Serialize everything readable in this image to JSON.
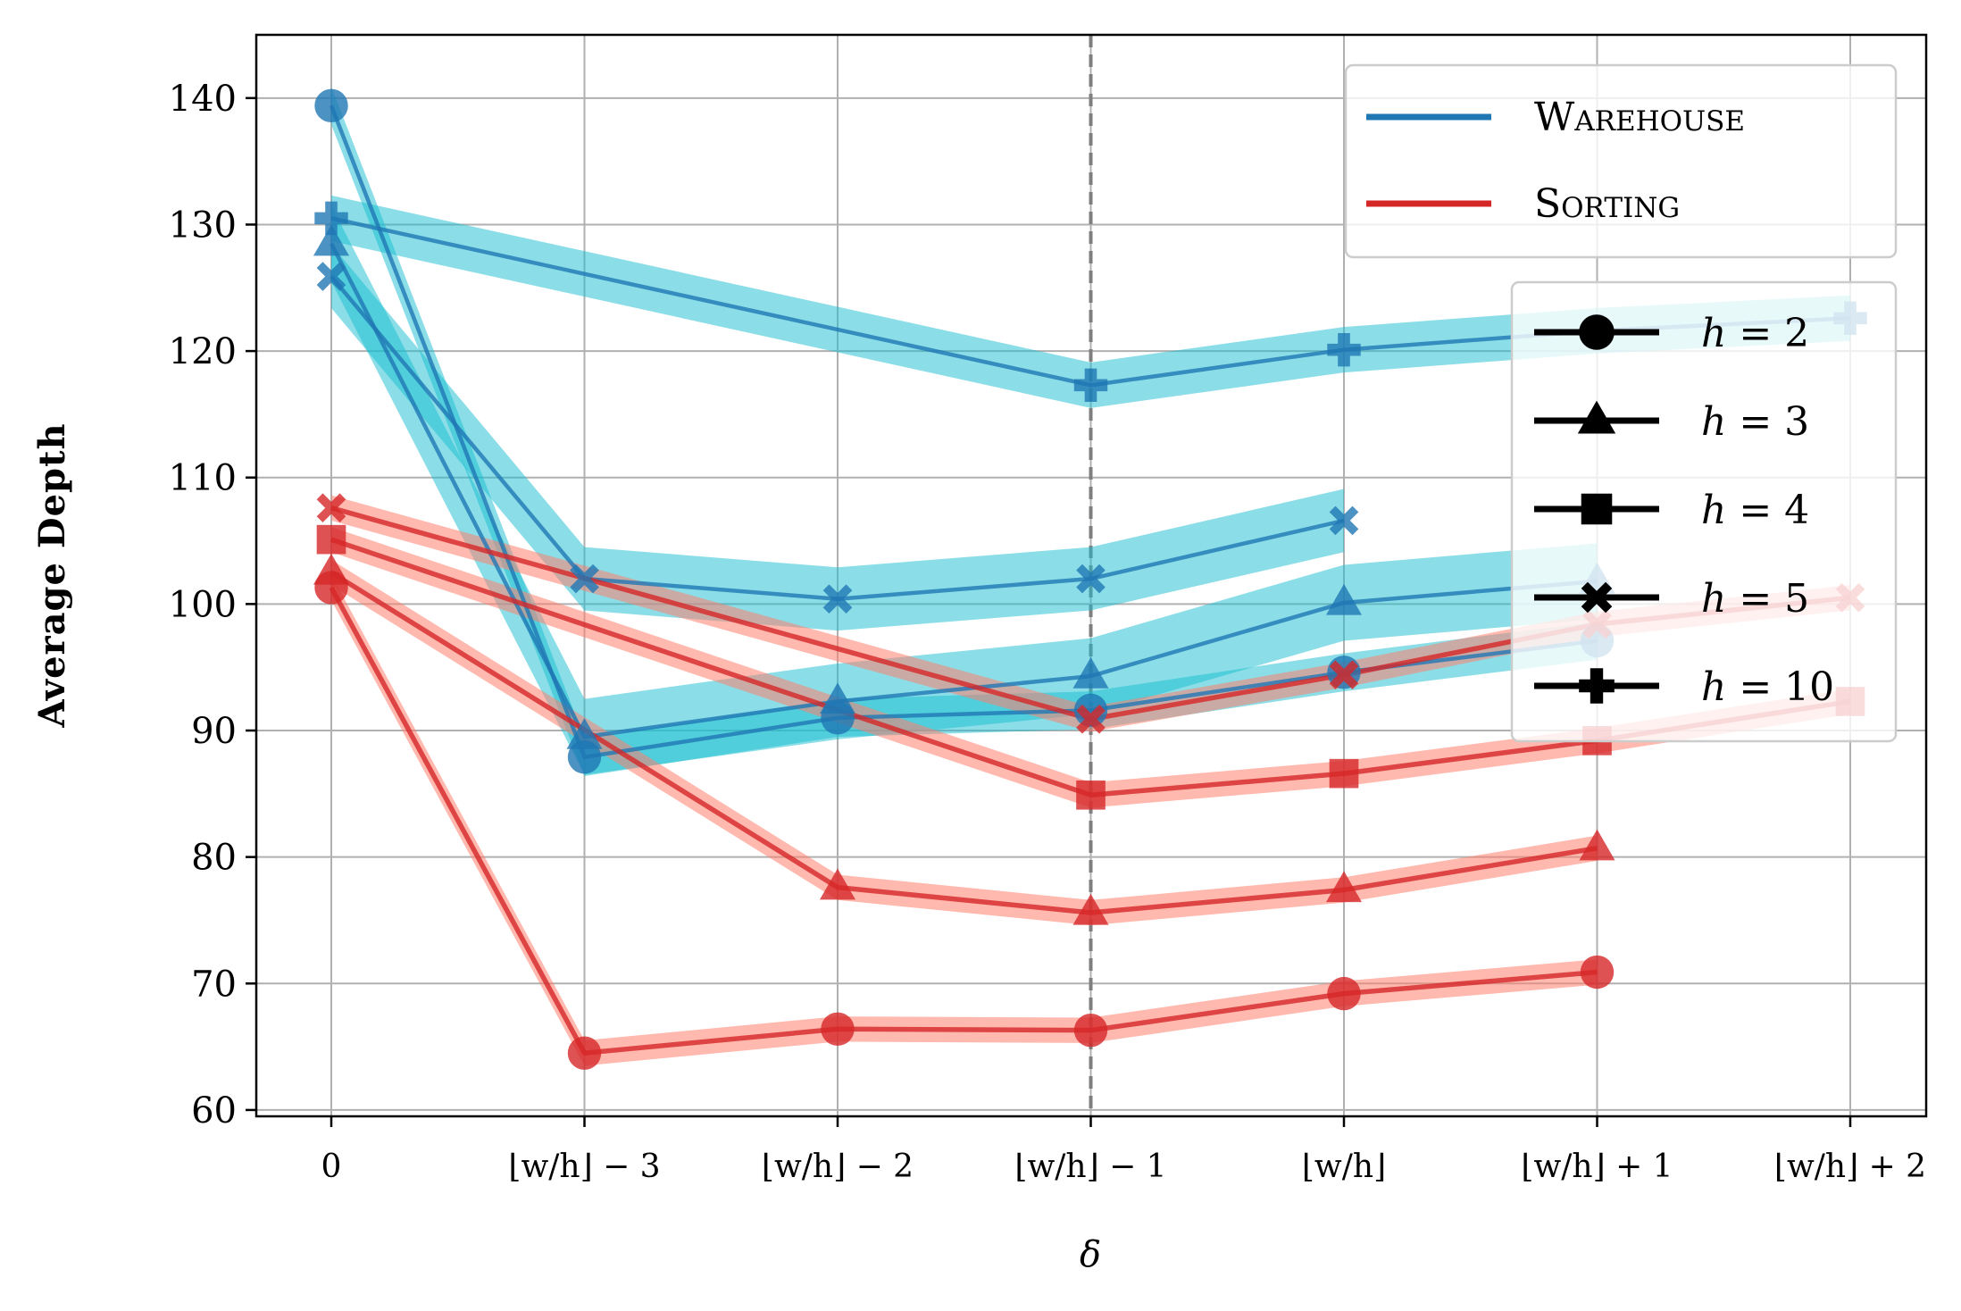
{
  "chart_data": {
    "type": "line",
    "xlabel": "δ",
    "ylabel": "Average Depth",
    "ylim": [
      59.5,
      145
    ],
    "yticks": [
      60,
      70,
      80,
      90,
      100,
      110,
      120,
      130,
      140
    ],
    "categories": [
      "0",
      "⌊w/h⌋ − 3",
      "⌊w/h⌋ − 2",
      "⌊w/h⌋ − 1",
      "⌊w/h⌋",
      "⌊w/h⌋ + 1",
      "⌊w/h⌋ + 2"
    ],
    "grid": true,
    "reference_line_at": "⌊w/h⌋ − 1",
    "legend_color": {
      "placement": "top-right",
      "entries": [
        {
          "label": "Warehouse",
          "color": "#1f77b4"
        },
        {
          "label": "Sorting",
          "color": "#d62728"
        }
      ]
    },
    "legend_marker": {
      "placement": "right",
      "entries": [
        {
          "label": "h = 2",
          "marker": "circle"
        },
        {
          "label": "h = 3",
          "marker": "triangle"
        },
        {
          "label": "h = 4",
          "marker": "square"
        },
        {
          "label": "h = 5",
          "marker": "x"
        },
        {
          "label": "h = 10",
          "marker": "plus"
        }
      ]
    },
    "colors": {
      "warehouse_line": "#1f77b4",
      "warehouse_band": "#17becf",
      "sorting_line": "#d62728",
      "sorting_band": "#ff7f6e"
    },
    "series": [
      {
        "group": "Warehouse",
        "h": 2,
        "marker": "circle",
        "x": [
          0,
          1,
          2,
          3,
          4,
          5
        ],
        "values": [
          139.4,
          87.9,
          91.0,
          91.6,
          94.6,
          97.1
        ],
        "band": 1.5
      },
      {
        "group": "Warehouse",
        "h": 3,
        "marker": "triangle",
        "x": [
          0,
          1,
          2,
          3,
          4,
          5
        ],
        "values": [
          128.5,
          89.5,
          92.3,
          94.3,
          100.1,
          101.8
        ],
        "band": 3.0
      },
      {
        "group": "Warehouse",
        "h": 5,
        "marker": "x",
        "x": [
          0,
          1,
          2,
          3,
          4
        ],
        "values": [
          125.9,
          102.0,
          100.4,
          102.0,
          106.6
        ],
        "band": 2.5
      },
      {
        "group": "Warehouse",
        "h": 10,
        "marker": "plus",
        "x": [
          0,
          3,
          4,
          5,
          6
        ],
        "values": [
          130.5,
          117.3,
          120.1,
          121.6,
          122.6
        ],
        "band": 1.8
      },
      {
        "group": "Sorting",
        "h": 2,
        "marker": "circle",
        "x": [
          0,
          1,
          2,
          3,
          4,
          5
        ],
        "values": [
          101.3,
          64.5,
          66.4,
          66.3,
          69.2,
          70.9
        ],
        "band": 1.0
      },
      {
        "group": "Sorting",
        "h": 3,
        "marker": "triangle",
        "x": [
          0,
          2,
          3,
          4,
          5
        ],
        "values": [
          102.5,
          77.6,
          75.6,
          77.4,
          80.7
        ],
        "band": 1.0
      },
      {
        "group": "Sorting",
        "h": 4,
        "marker": "square",
        "x": [
          0,
          3,
          4,
          5,
          6
        ],
        "values": [
          105.1,
          84.9,
          86.6,
          89.2,
          92.3
        ],
        "band": 1.0
      },
      {
        "group": "Sorting",
        "h": 5,
        "marker": "x",
        "x": [
          0,
          3,
          4,
          5,
          6
        ],
        "values": [
          107.6,
          90.9,
          94.4,
          98.4,
          100.5
        ],
        "band": 1.0
      }
    ]
  }
}
